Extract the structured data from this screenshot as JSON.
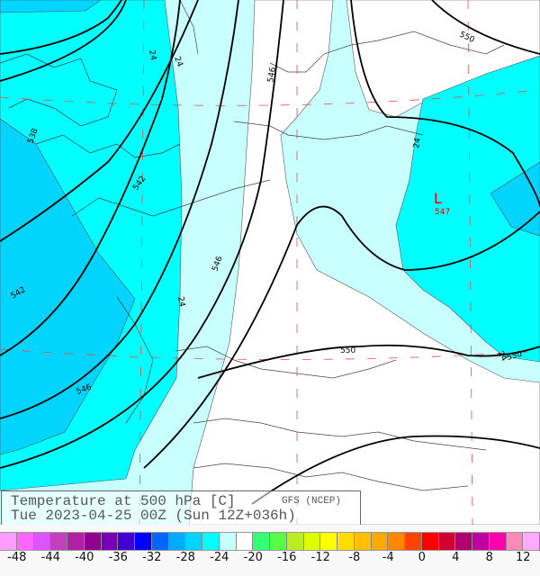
{
  "title": {
    "line1": "Temperature at 500 hPa [C]",
    "line2": "Tue 2023-04-25 00Z (Sun 12Z+036h)",
    "source": "GFS (NCEP)"
  },
  "map": {
    "low_marker": {
      "symbol": "L",
      "value": "547",
      "color": "#dd0000"
    },
    "height_contour_labels": [
      "538",
      "542",
      "542",
      "546",
      "546",
      "546",
      "550",
      "550",
      "550"
    ],
    "temperature_contour_labels": [
      "24",
      "24",
      "24",
      "24",
      "24"
    ],
    "fill_colors": {
      "-28_-26": "#00d4ff",
      "-26_-24": "#00ffff",
      "-24_-22": "#c8ffff",
      "-22_-20": "#ffffff"
    }
  },
  "colorbar": {
    "colors": [
      "#ff9dff",
      "#ff66ff",
      "#dd55ff",
      "#c040c0",
      "#b020a0",
      "#900090",
      "#7a00b8",
      "#4400d0",
      "#0000ff",
      "#0066ff",
      "#00aaff",
      "#00d4ff",
      "#00ffff",
      "#c8ffff",
      "#ffffff",
      "#33ff77",
      "#55ff44",
      "#bbee22",
      "#ddff00",
      "#ffff00",
      "#ffdd00",
      "#ffc000",
      "#ffaa00",
      "#ff8800",
      "#ff4400",
      "#ff0000",
      "#d00030",
      "#b00070",
      "#c000a0",
      "#ff00aa",
      "#ff88bb",
      "#ffaaff"
    ],
    "labels": [
      "-48",
      "-44",
      "-40",
      "-36",
      "-32",
      "-28",
      "-24",
      "-20",
      "-16",
      "-12",
      "-8",
      "-4",
      "0",
      "4",
      "8",
      "12"
    ]
  }
}
